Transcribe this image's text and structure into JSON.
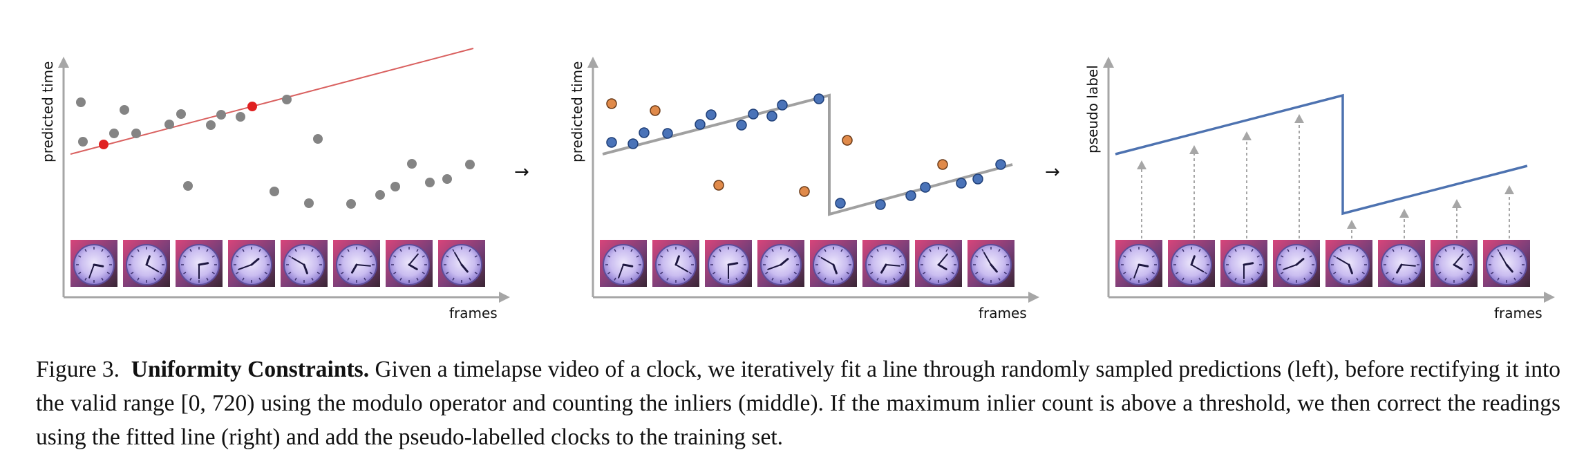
{
  "figure": {
    "panels": [
      {
        "ylabel": "predicted time",
        "xlabel": "frames",
        "fit_color": "#d9605f",
        "gray_points": [
          [
            1,
            12.5
          ],
          [
            2,
            10.2
          ],
          [
            3,
            10.5
          ],
          [
            4,
            13.2
          ],
          [
            5,
            10.5
          ],
          [
            7,
            11.3
          ],
          [
            8,
            12.8
          ],
          [
            9,
            11.3
          ],
          [
            10,
            12.2
          ],
          [
            11,
            12.3
          ],
          [
            12.5,
            14.4
          ],
          [
            13,
            6.4
          ],
          [
            15,
            5.0
          ],
          [
            16,
            10.5
          ],
          [
            18,
            5.0
          ],
          [
            19,
            6.0
          ],
          [
            20,
            6.3
          ],
          [
            21,
            7.8
          ],
          [
            22,
            6.4
          ],
          [
            23,
            6.6
          ],
          [
            24,
            7.8
          ],
          [
            0.5,
            14.5
          ]
        ],
        "sample_points": [
          [
            1,
            11.0
          ],
          [
            5.5,
            16.0
          ]
        ],
        "fit_line": [
          [
            -1,
            9.3
          ],
          [
            21.5,
            21.5
          ]
        ]
      },
      {
        "ylabel": "predicted time",
        "xlabel": "frames",
        "line_color": "#a0a0a0",
        "inliers": [
          [
            0.5,
            11.8
          ],
          [
            2,
            11.6
          ],
          [
            3.5,
            13.6
          ],
          [
            5,
            13.4
          ],
          [
            7,
            12.7
          ],
          [
            7.5,
            13.9
          ],
          [
            9,
            14.8
          ],
          [
            10,
            12.9
          ],
          [
            11,
            14.6
          ],
          [
            12.5,
            15.5
          ],
          [
            13,
            14.8
          ],
          [
            14,
            13.2
          ],
          [
            12.2,
            16.0
          ],
          [
            16,
            3.0
          ],
          [
            17.2,
            3.3
          ],
          [
            18,
            4.5
          ],
          [
            19,
            5.5
          ],
          [
            20,
            6.1
          ],
          [
            21.5,
            6.6
          ],
          [
            22.3,
            6.9
          ],
          [
            24,
            7.5
          ]
        ],
        "outliers": [
          [
            0.5,
            15.6
          ],
          [
            3.8,
            14.9
          ],
          [
            6.8,
            6.8
          ],
          [
            13.5,
            6.2
          ],
          [
            15.5,
            12.9
          ],
          [
            21,
            8.5
          ]
        ],
        "line_points": [
          [
            0,
            11.5
          ],
          [
            12.7,
            16.4
          ],
          [
            12.7,
            1.7
          ],
          [
            25,
            5.8
          ]
        ]
      },
      {
        "ylabel": "pseudo label",
        "xlabel": "frames",
        "line_color": "#4d72b0",
        "arrow_positions": [
          1,
          3.5,
          6,
          8.5,
          11,
          13.5,
          16,
          18.5
        ],
        "line_points": [
          [
            0,
            14.2
          ],
          [
            12.7,
            17.7
          ],
          [
            12.7,
            8.7
          ],
          [
            25,
            11.9
          ]
        ]
      }
    ],
    "arrow_glyph": "→"
  },
  "caption": {
    "label": "Figure 3.",
    "title": "Uniformity Constraints.",
    "text": "Given a timelapse video of a clock, we iteratively fit a line through randomly sampled predictions (left), before rectifying it into the valid range [0, 720) using the modulo operator and counting the inliers (middle). If the maximum inlier count is above a threshold, we then correct the readings using the fitted line (right) and add the pseudo-labelled clocks to the training set."
  },
  "colors": {
    "gray_point": "#848484",
    "red_point": "#e02020",
    "blue_point": "#4a73b8",
    "orange_point": "#e08a4a",
    "axis": "#a6a6a6"
  },
  "icons": {
    "clock": "clock-icon",
    "arrow": "right-arrow-icon"
  }
}
